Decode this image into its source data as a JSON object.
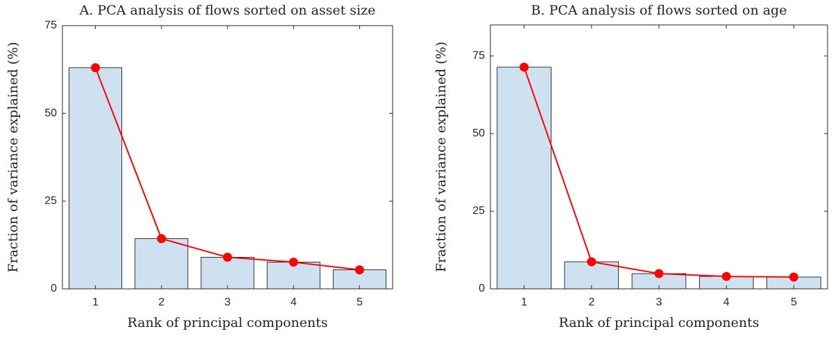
{
  "chart_data": [
    {
      "type": "bar",
      "title": "A. PCA analysis of flows sorted on asset size",
      "xlabel": "Rank of principal components",
      "ylabel": "Fraction of variance explained (%)",
      "categories": [
        "1",
        "2",
        "3",
        "4",
        "5"
      ],
      "values": [
        63,
        14.3,
        9,
        7.6,
        5.4
      ],
      "color": "#cde1f1",
      "line_color": "#ff0000",
      "ylim": [
        0,
        75
      ],
      "yticks": [
        0,
        25,
        50,
        75
      ]
    },
    {
      "type": "bar",
      "title": "B. PCA analysis of flows sorted on age",
      "xlabel": "Rank of principal components",
      "ylabel": "Fraction of variance explained (%)",
      "categories": [
        "1",
        "2",
        "3",
        "4",
        "5"
      ],
      "values": [
        71.4,
        8.7,
        4.9,
        4.0,
        3.8
      ],
      "color": "#cde1f1",
      "line_color": "#ff0000",
      "ylim": [
        0,
        85
      ],
      "yticks": [
        0,
        25,
        50,
        75
      ]
    }
  ]
}
